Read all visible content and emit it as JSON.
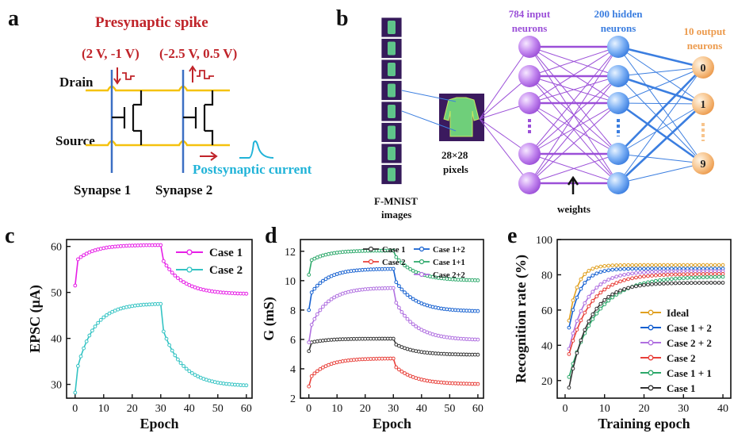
{
  "panels": {
    "a": "a",
    "b": "b",
    "c": "c",
    "d": "d",
    "e": "e"
  },
  "schematic": {
    "title": "Presynaptic spike",
    "pulse1": "(2 V, -1 V)",
    "pulse2": "(-2.5 V, 0.5 V)",
    "drain": "Drain",
    "source": "Source",
    "post": "Postsynaptic current",
    "syn1": "Synapse 1",
    "syn2": "Synapse 2"
  },
  "network": {
    "input": "784 input neurons",
    "hidden": "200 hidden neurons",
    "output": "10 output neurons",
    "pixels": "28×28 pixels",
    "images": "F-MNIST images",
    "weights": "weights",
    "out_labels": [
      "0",
      "1",
      "9"
    ]
  },
  "chart_data": [
    {
      "id": "c",
      "type": "line",
      "xlabel": "Epoch",
      "ylabel": "EPSC (μA)",
      "xlim": [
        -3,
        62
      ],
      "ylim": [
        27,
        61.5
      ],
      "xticks": [
        0,
        10,
        20,
        30,
        40,
        50,
        60
      ],
      "yticks": [
        30,
        40,
        50,
        60
      ],
      "legend": "top-right",
      "series": [
        {
          "name": "Case 1",
          "color": "#e61ee6",
          "x0": 0,
          "x1": 60,
          "start": 51.5,
          "jump": 57.2,
          "peak": 60.3,
          "end": 49.6,
          "drop": 56.8
        },
        {
          "name": "Case 2",
          "color": "#33c3c3",
          "x0": 0,
          "x1": 60,
          "start": 28.2,
          "jump": 34.0,
          "peak": 47.5,
          "end": 29.6,
          "drop": 41.5
        }
      ]
    },
    {
      "id": "d",
      "type": "line",
      "xlabel": "Epoch",
      "ylabel": "G (mS)",
      "xlim": [
        -3,
        62
      ],
      "ylim": [
        2,
        12.8
      ],
      "xticks": [
        0,
        10,
        20,
        30,
        40,
        50,
        60
      ],
      "yticks": [
        2,
        4,
        6,
        8,
        10,
        12
      ],
      "legend": "top",
      "series": [
        {
          "name": "Case 1",
          "color": "#333333",
          "x0": 0,
          "x1": 60,
          "start": 5.2,
          "jump": 5.8,
          "peak": 6.05,
          "end": 4.95,
          "drop": 5.65
        },
        {
          "name": "Case 2",
          "color": "#e8403a",
          "x0": 0,
          "x1": 60,
          "start": 2.8,
          "jump": 3.5,
          "peak": 4.7,
          "end": 2.95,
          "drop": 4.1
        },
        {
          "name": "Case 1+2",
          "color": "#1560d0",
          "x0": 0,
          "x1": 60,
          "start": 8.0,
          "jump": 9.2,
          "peak": 10.8,
          "end": 7.9,
          "drop": 9.9
        },
        {
          "name": "Case 1+1",
          "color": "#2ca86a",
          "x0": 0,
          "x1": 60,
          "start": 10.4,
          "jump": 11.4,
          "peak": 12.05,
          "end": 10.0,
          "drop": 11.6
        },
        {
          "name": "Case 2+2",
          "color": "#b070e0",
          "x0": 0,
          "x1": 60,
          "start": 5.8,
          "jump": 7.0,
          "peak": 9.5,
          "end": 5.95,
          "drop": 8.5
        }
      ]
    },
    {
      "id": "e",
      "type": "line",
      "xlabel": "Training epoch",
      "ylabel": "Recognition rate (%)",
      "xlim": [
        -2,
        42
      ],
      "ylim": [
        10,
        100
      ],
      "xticks": [
        0,
        10,
        20,
        30,
        40
      ],
      "yticks": [
        20,
        40,
        60,
        80,
        100
      ],
      "legend": "bottom-right",
      "series": [
        {
          "name": "Ideal",
          "color": "#e0a020",
          "x0": 1,
          "x1": 40,
          "start": 54,
          "end": 85.5,
          "tau": 2.2
        },
        {
          "name": "Case 1 + 2",
          "color": "#1560d0",
          "x0": 1,
          "x1": 40,
          "start": 50,
          "end": 83.5,
          "tau": 2.8
        },
        {
          "name": "Case 2 + 2",
          "color": "#b070e0",
          "x0": 1,
          "x1": 40,
          "start": 38,
          "end": 82,
          "tau": 4.5
        },
        {
          "name": "Case 2",
          "color": "#e8403a",
          "x0": 1,
          "x1": 40,
          "start": 35,
          "end": 80.5,
          "tau": 5.5
        },
        {
          "name": "Case 1 + 1",
          "color": "#2ca86a",
          "x0": 1,
          "x1": 40,
          "start": 22,
          "end": 79,
          "tau": 7.0
        },
        {
          "name": "Case 1",
          "color": "#333333",
          "x0": 1,
          "x1": 40,
          "start": 16,
          "end": 75.5,
          "tau": 5.0
        }
      ]
    }
  ]
}
